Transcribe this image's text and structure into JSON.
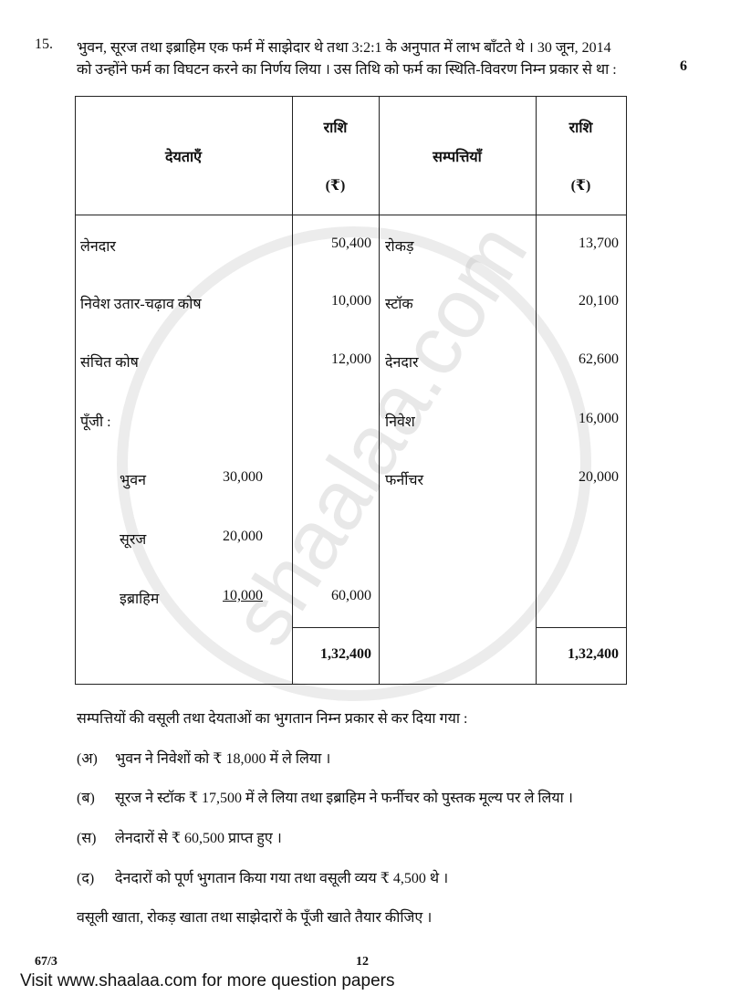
{
  "question": {
    "number": "15.",
    "line1": "भुवन, सूरज तथा इब्राहिम एक फर्म में साझेदार थे तथा 3:2:1 के अनुपात में लाभ बाँटते थे । 30 जून, 2014",
    "line2": "को उन्होंने फर्म का विघटन करने का निर्णय लिया । उस तिथि को फर्म का स्थिति-विवरण निम्न प्रकार से था :",
    "marks": "6"
  },
  "table": {
    "headers": {
      "liabilities": "देयताएँ",
      "amount": "राशि",
      "currency": "(₹)",
      "assets": "सम्पत्तियाँ"
    },
    "liabilities": [
      {
        "label": "लेनदार",
        "amount": "50,400"
      },
      {
        "label": "निवेश उतार-चढ़ाव कोष",
        "amount": "10,000"
      },
      {
        "label": "संचित कोष",
        "amount": "12,000"
      },
      {
        "label": "पूँजी :",
        "amount": ""
      }
    ],
    "capital": [
      {
        "label": "भुवन",
        "amount": "30,000"
      },
      {
        "label": "सूरज",
        "amount": "20,000"
      },
      {
        "label": "इब्राहिम",
        "amount": "10,000"
      }
    ],
    "capital_total": "60,000",
    "assets": [
      {
        "label": "रोकड़",
        "amount": "13,700"
      },
      {
        "label": "स्टॉक",
        "amount": "20,100"
      },
      {
        "label": "देनदार",
        "amount": "62,600"
      },
      {
        "label": "निवेश",
        "amount": "16,000"
      },
      {
        "label": "फर्नीचर",
        "amount": "20,000"
      }
    ],
    "liabilities_total": "1,32,400",
    "assets_total": "1,32,400"
  },
  "intro": "सम्पत्तियों की वसूली तथा देयताओं का भुगतान निम्न प्रकार से कर दिया गया :",
  "items": [
    {
      "key": "(अ)",
      "text": "भुवन ने निवेशों को ₹ 18,000 में ले लिया ।"
    },
    {
      "key": "(ब)",
      "text": "सूरज ने स्टॉक ₹ 17,500 में ले लिया तथा इब्राहिम ने फर्नीचर को पुस्तक मूल्य पर ले लिया ।"
    },
    {
      "key": "(स)",
      "text": "लेनदारों से ₹ 60,500 प्राप्त हुए ।"
    },
    {
      "key": "(द)",
      "text": "देनदारों को पूर्ण भुगतान किया गया तथा वसूली व्यय ₹ 4,500 थे ।"
    }
  ],
  "instruction": "वसूली खाता, रोकड़ खाता तथा साझेदारों के पूँजी खाते तैयार कीजिए ।",
  "footer": {
    "code": "67/3",
    "page": "12",
    "link": "Visit www.shaalaa.com for more question papers"
  },
  "watermark": "shaalaa.com"
}
